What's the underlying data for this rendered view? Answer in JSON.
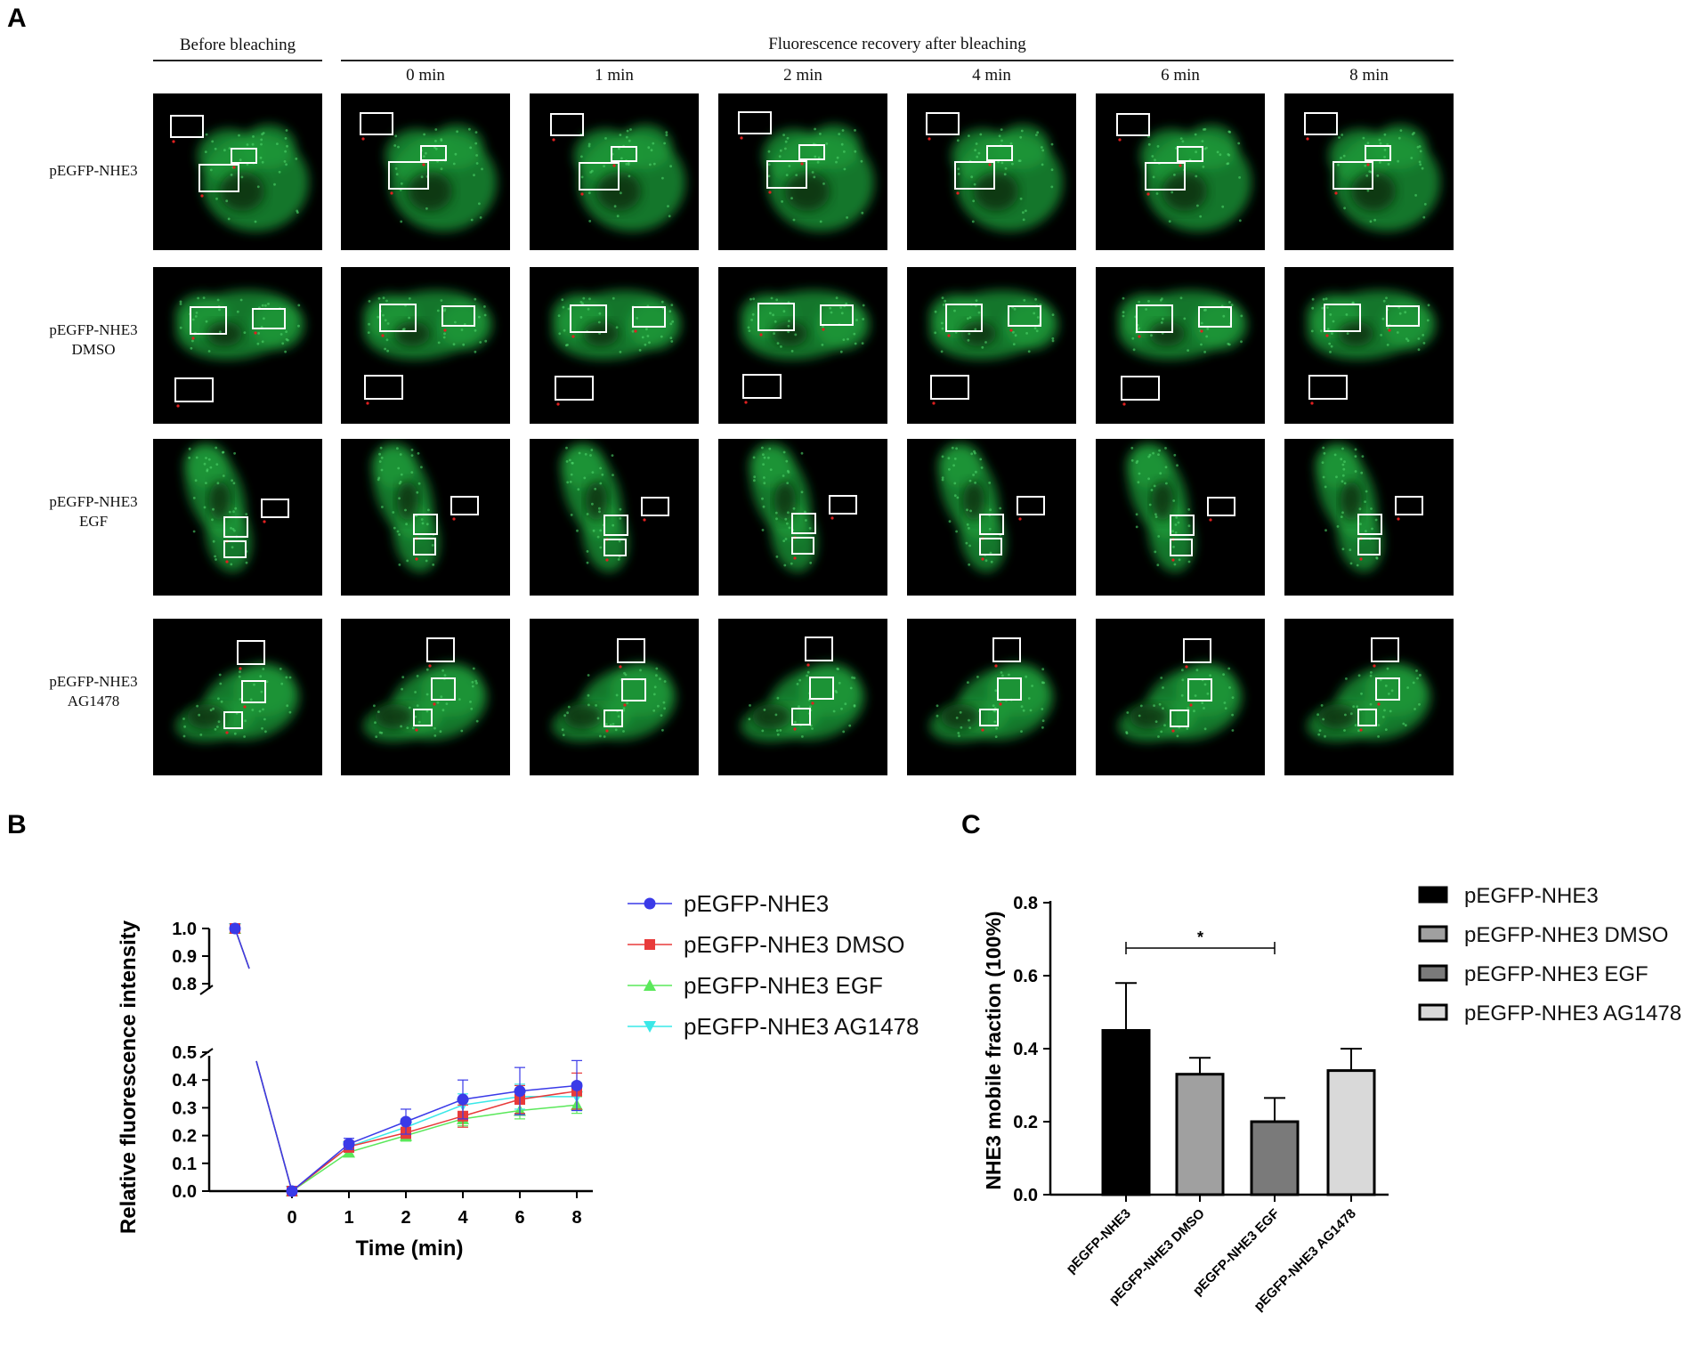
{
  "panel_letters": {
    "a": "A",
    "b": "B",
    "c": "C"
  },
  "panel_a": {
    "group_before": "Before bleaching",
    "group_after": "Fluorescence recovery after bleaching",
    "time_labels": [
      "0 min",
      "1 min",
      "2 min",
      "4 min",
      "6 min",
      "8 min"
    ],
    "row_labels": [
      {
        "line1": "pEGFP-NHE3",
        "line2": ""
      },
      {
        "line1": "pEGFP-NHE3",
        "line2": "DMSO"
      },
      {
        "line1": "pEGFP-NHE3",
        "line2": "EGF"
      },
      {
        "line1": "pEGFP-NHE3",
        "line2": "AG1478"
      }
    ],
    "colors": {
      "background": "#000000",
      "fluorescence": "#1e9e3a",
      "roi_box": "#ffffff",
      "roi_marker": "#e02020"
    }
  },
  "chart_data": [
    {
      "type": "line",
      "panel": "B",
      "xlabel": "Time (min)",
      "ylabel": "Relative fluorescence intensity",
      "x_tick_labels": [
        "0",
        "1",
        "2",
        "4",
        "6",
        "8"
      ],
      "y_ticks_lower": [
        "0.0",
        "0.1",
        "0.2",
        "0.3",
        "0.4",
        "0.5"
      ],
      "y_ticks_upper": [
        "0.8",
        "0.9",
        "1.0"
      ],
      "axis_break": [
        0.5,
        0.8
      ],
      "legend_position": "right",
      "series": [
        {
          "name": "pEGFP-NHE3",
          "marker": "circle",
          "color": "#3a3ae8",
          "pre": 1.0,
          "values": [
            0.0,
            0.17,
            0.25,
            0.33,
            0.36,
            0.38
          ],
          "errors": [
            0,
            0.02,
            0.045,
            0.07,
            0.085,
            0.09
          ]
        },
        {
          "name": "pEGFP-NHE3 DMSO",
          "marker": "square",
          "color": "#e83a3a",
          "pre": 1.0,
          "values": [
            0.0,
            0.16,
            0.21,
            0.27,
            0.33,
            0.36
          ],
          "errors": [
            0,
            0.02,
            0.02,
            0.04,
            0.05,
            0.065
          ]
        },
        {
          "name": "pEGFP-NHE3 EGF",
          "marker": "triangle-up",
          "color": "#5ae85a",
          "pre": 1.0,
          "values": [
            0.0,
            0.14,
            0.2,
            0.26,
            0.29,
            0.31
          ],
          "errors": [
            0,
            0.015,
            0.02,
            0.025,
            0.03,
            0.03
          ]
        },
        {
          "name": "pEGFP-NHE3 AG1478",
          "marker": "triangle-down",
          "color": "#3ae8e8",
          "pre": 1.0,
          "values": [
            0.0,
            0.16,
            0.23,
            0.31,
            0.34,
            0.34
          ],
          "errors": [
            0,
            0.02,
            0.03,
            0.04,
            0.045,
            0.05
          ]
        }
      ]
    },
    {
      "type": "bar",
      "panel": "C",
      "ylabel": "NHE3 mobile fraction (100%)",
      "categories": [
        "pEGFP-NHE3",
        "pEGFP-NHE3 DMSO",
        "pEGFP-NHE3 EGF",
        "pEGFP-NHE3 AG1478"
      ],
      "values": [
        0.45,
        0.33,
        0.2,
        0.34
      ],
      "errors": [
        0.13,
        0.045,
        0.065,
        0.06
      ],
      "colors": [
        "#000000",
        "#a0a0a0",
        "#7a7a7a",
        "#d9d9d9"
      ],
      "ylim": [
        0,
        0.8
      ],
      "y_ticks": [
        "0.0",
        "0.2",
        "0.4",
        "0.6",
        "0.8"
      ],
      "significance": {
        "from": 0,
        "to": 2,
        "label": "*"
      },
      "legend_position": "right"
    }
  ]
}
